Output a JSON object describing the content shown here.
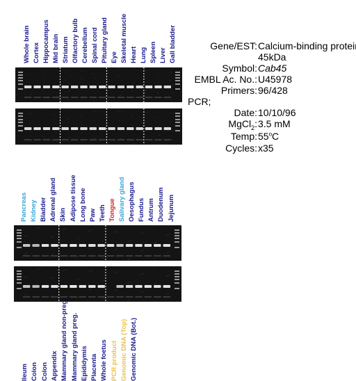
{
  "panel1": {
    "lanes": [
      {
        "label": "Whole brain",
        "color": "#1a1a8c"
      },
      {
        "label": "Cortex",
        "color": "#1a1a8c"
      },
      {
        "label": "Hippocampus",
        "color": "#1a1a8c"
      },
      {
        "label": "Mid brain",
        "color": "#1a1a8c"
      },
      {
        "label": "Striatum",
        "color": "#1a1a8c"
      },
      {
        "label": "Olfactory bulb",
        "color": "#1a1a8c"
      },
      {
        "label": "Cerebellum",
        "color": "#1a1a8c"
      },
      {
        "label": "Spinal cord",
        "color": "#1a1a8c"
      },
      {
        "label": "Pituitary gland",
        "color": "#1a1a8c"
      },
      {
        "label": "Eye",
        "color": "#1a1a8c"
      },
      {
        "label": "Skeletal muscle",
        "color": "#1a1a8c"
      },
      {
        "label": "Heart",
        "color": "#1a1a8c"
      },
      {
        "label": "Lung",
        "color": "#1a1a8c"
      },
      {
        "label": "Spleen",
        "color": "#1a1a8c"
      },
      {
        "label": "Liver",
        "color": "#1a1a8c"
      },
      {
        "label": "Gall bladder",
        "color": "#1a1a8c"
      }
    ]
  },
  "panel2": {
    "lanes": [
      {
        "label": "Pancreas",
        "color": "#3aa6d6"
      },
      {
        "label": "Kidney",
        "color": "#3aa6d6"
      },
      {
        "label": "Bladder",
        "color": "#1a1a8c"
      },
      {
        "label": "Adrenal gland",
        "color": "#1a1a8c"
      },
      {
        "label": "Skin",
        "color": "#1a1a8c"
      },
      {
        "label": "Adipose tissue",
        "color": "#1a1a8c"
      },
      {
        "label": "Long bone",
        "color": "#1a1a8c"
      },
      {
        "label": "Paw",
        "color": "#1a1a8c"
      },
      {
        "label": "Teeth",
        "color": "#1a1a8c"
      },
      {
        "label": "Tongue",
        "color": "#d42020"
      },
      {
        "label": "Salivary gland",
        "color": "#3aa6d6"
      },
      {
        "label": "Oesophagus",
        "color": "#1a1a8c"
      },
      {
        "label": "Fundus",
        "color": "#1a1a8c"
      },
      {
        "label": "Antrum",
        "color": "#1a1a8c"
      },
      {
        "label": "Duodenum",
        "color": "#1a1a8c"
      },
      {
        "label": "Jejunum",
        "color": "#1a1a8c"
      }
    ]
  },
  "panel3": {
    "lanes": [
      {
        "label": "Ileum",
        "color": "#1a1a8c"
      },
      {
        "label": "Colon",
        "color": "#1a1a8c"
      },
      {
        "label": "Colon",
        "color": "#1a1a8c"
      },
      {
        "label": "Appendix",
        "color": "#1a1a8c"
      },
      {
        "label": "Mammary gland non-preg.",
        "color": "#1a1a8c"
      },
      {
        "label": "Mammary gland preg.",
        "color": "#1a1a8c"
      },
      {
        "label": "Epididymis",
        "color": "#1a1a8c"
      },
      {
        "label": "Placenta",
        "color": "#1a1a8c"
      },
      {
        "label": "Whole foetus",
        "color": "#1a1a8c"
      },
      {
        "label": "PCR product",
        "color": "#e8c24a"
      },
      {
        "label": "Genomic DNA (Top)",
        "color": "#e8c24a"
      },
      {
        "label": "Genomic DNA (Bot.)",
        "color": "#1a1a8c"
      }
    ]
  },
  "info": {
    "gene_label": "Gene/EST:",
    "gene_value_1": "Calcium-binding protein",
    "gene_value_2": "45kDa",
    "symbol_label": "Symbol:",
    "symbol_value": "Cab45",
    "embl_label": "EMBL Ac. No.:",
    "embl_value": "U45978",
    "primers_label": "Primers:",
    "primers_value": "96/428",
    "pcr_label": "PCR;",
    "date_label": "Date:",
    "date_value": "10/10/96",
    "mgcl_label_a": "MgCl",
    "mgcl_label_sub": "2",
    "mgcl_label_b": ":",
    "mgcl_value": "3.5 mM",
    "temp_label": "Temp:",
    "temp_value_a": "55",
    "temp_value_sup": "o",
    "temp_value_b": "C",
    "cycles_label": "Cycles:",
    "cycles_value": "x35"
  },
  "gels": {
    "gel1_top": {
      "bands": [
        0.8,
        0.85,
        0.85,
        0.85,
        0.8,
        0.8,
        0.85,
        0.8,
        0.85,
        0.8,
        0.75,
        0.85,
        0.8,
        0.85,
        0.85,
        0.8
      ]
    },
    "gel1_bot": {
      "bands": [
        0.8,
        0.85,
        0.85,
        0.85,
        0.8,
        0.85,
        0.85,
        0.8,
        0.85,
        0.8,
        0.8,
        0.85,
        0.8,
        0.85,
        0.85,
        0.8
      ]
    },
    "gel2_top": {
      "bands": [
        0.6,
        0.5,
        0.85,
        0.85,
        0.85,
        0.9,
        0.85,
        0.85,
        0.85,
        0.85,
        0.6,
        0.85,
        0.85,
        0.85,
        0.85,
        0.85
      ]
    },
    "gel2_bot": {
      "bands": [
        0.6,
        0.5,
        0.85,
        0.85,
        0.85,
        0.9,
        0.85,
        0.85,
        0.85,
        0.0,
        0.6,
        0.8,
        0.85,
        0.85,
        0.85,
        0.85
      ]
    }
  }
}
